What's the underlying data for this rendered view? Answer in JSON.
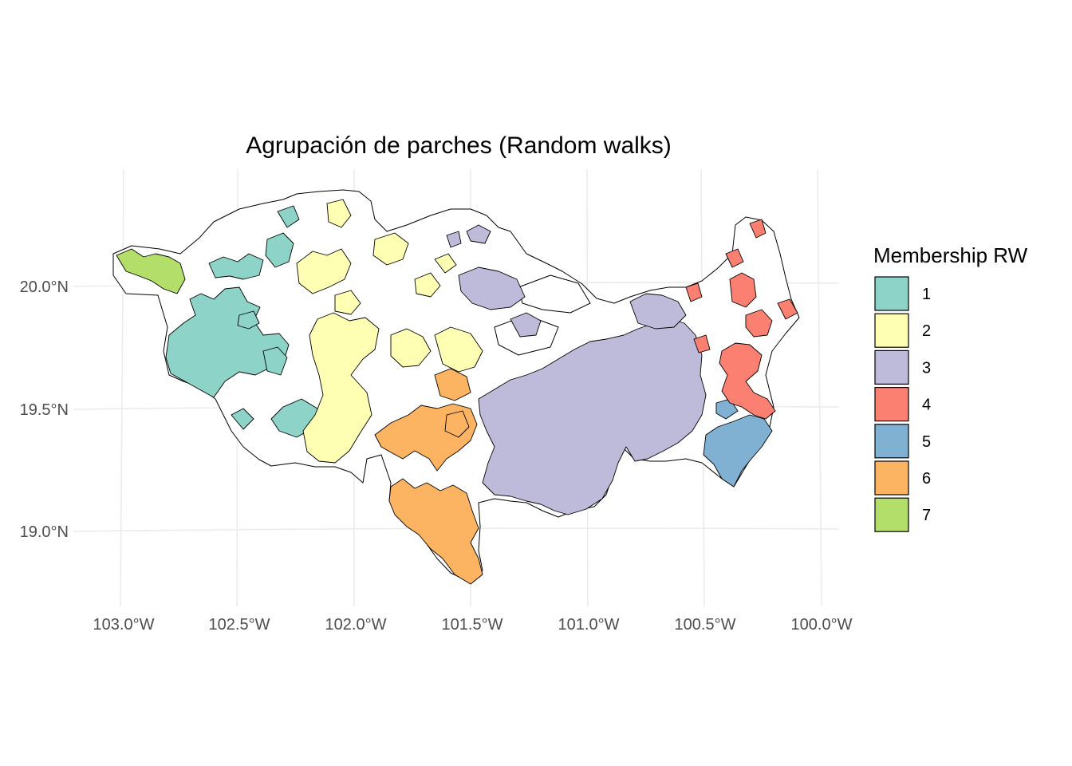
{
  "chart_data": {
    "type": "map",
    "title": "Agrupación de parches (Random walks)",
    "x_ticks": [
      "103.0°W",
      "102.5°W",
      "102.0°W",
      "101.5°W",
      "101.0°W",
      "100.5°W",
      "100.0°W"
    ],
    "y_ticks": [
      "20.0°N",
      "19.5°N",
      "19.0°N"
    ],
    "legend_title": "Membership RW",
    "legend": [
      {
        "label": "1",
        "color": "#8DD3C7"
      },
      {
        "label": "2",
        "color": "#FFFFB3"
      },
      {
        "label": "3",
        "color": "#BEBADA"
      },
      {
        "label": "4",
        "color": "#FB8072"
      },
      {
        "label": "5",
        "color": "#80B1D3"
      },
      {
        "label": "6",
        "color": "#FDB462"
      },
      {
        "label": "7",
        "color": "#B3DE69"
      }
    ],
    "grid": true
  }
}
